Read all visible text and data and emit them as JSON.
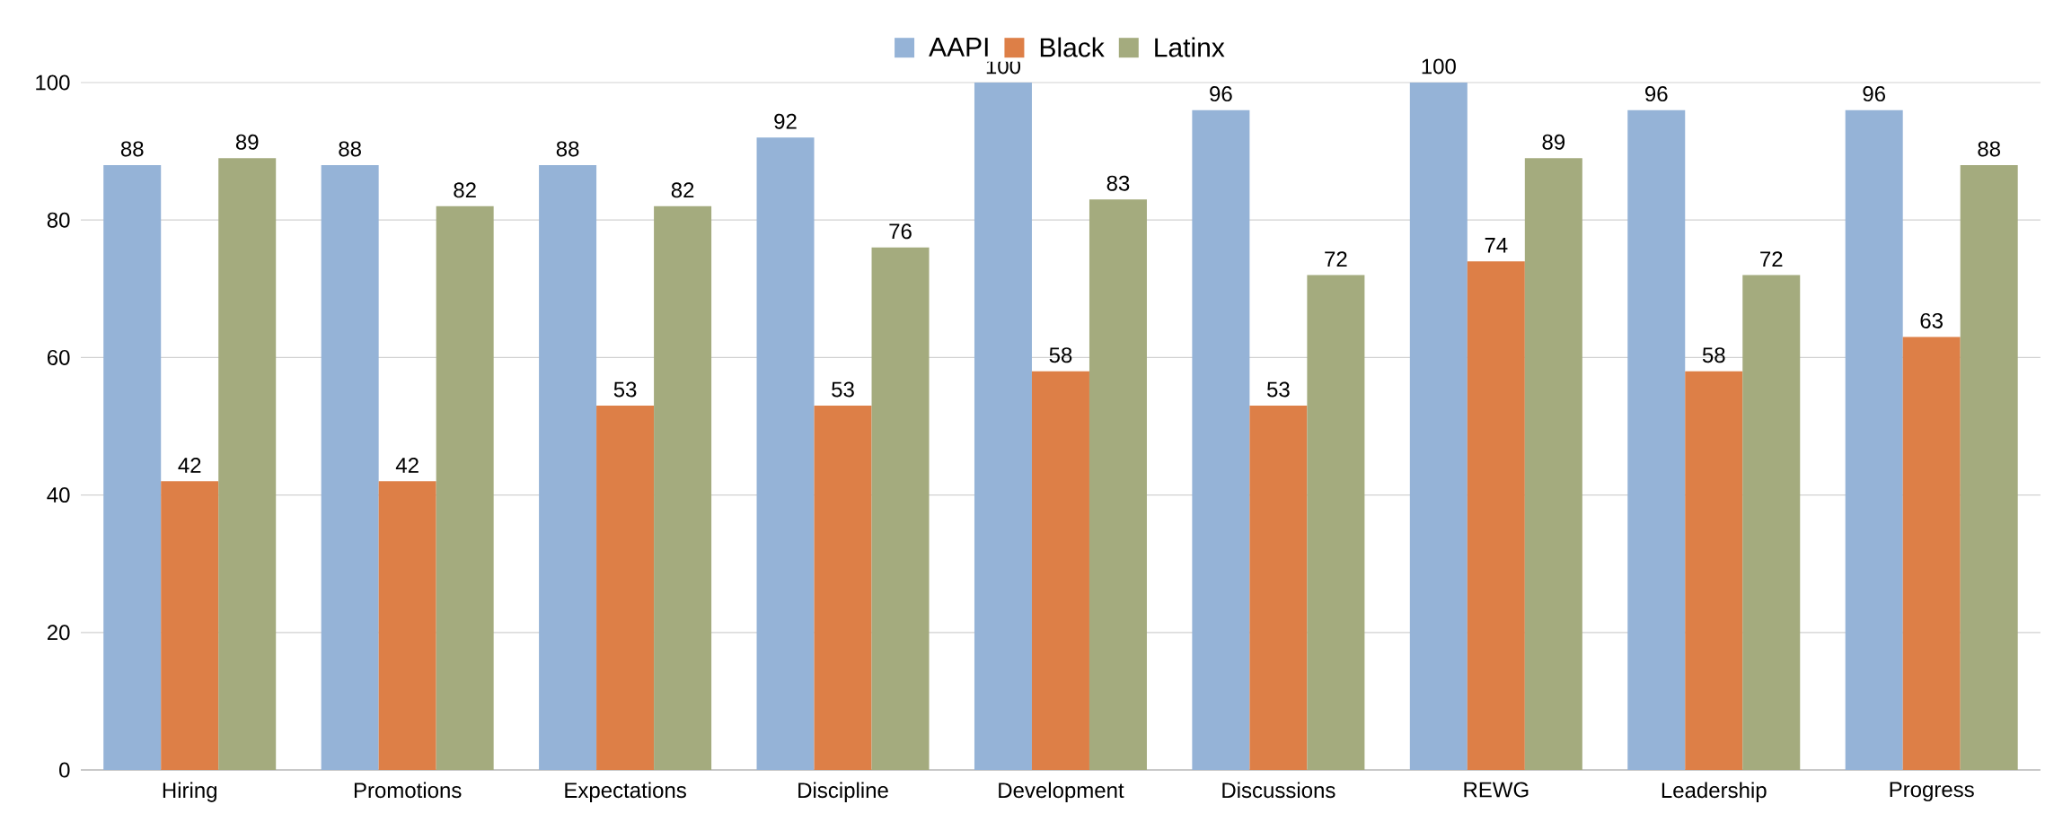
{
  "chart_data": {
    "type": "bar",
    "categories": [
      "Hiring",
      "Promotions",
      "Expectations",
      "Discipline",
      "Development",
      "Discussions",
      "REWG",
      "Leadership",
      "Progress"
    ],
    "series": [
      {
        "name": "AAPI",
        "color": "#95b3d7",
        "values": [
          88,
          88,
          88,
          92,
          100,
          96,
          100,
          96,
          96
        ]
      },
      {
        "name": "Black",
        "color": "#dd7f47",
        "values": [
          42,
          42,
          53,
          53,
          58,
          53,
          74,
          58,
          63
        ]
      },
      {
        "name": "Latinx",
        "color": "#a4ab7e",
        "values": [
          89,
          82,
          82,
          76,
          83,
          72,
          89,
          72,
          88
        ]
      }
    ],
    "ylim": [
      0,
      100
    ],
    "yticks": [
      0,
      20,
      40,
      60,
      80,
      100
    ],
    "grid": "y",
    "legend": "top",
    "data_labels": true
  }
}
